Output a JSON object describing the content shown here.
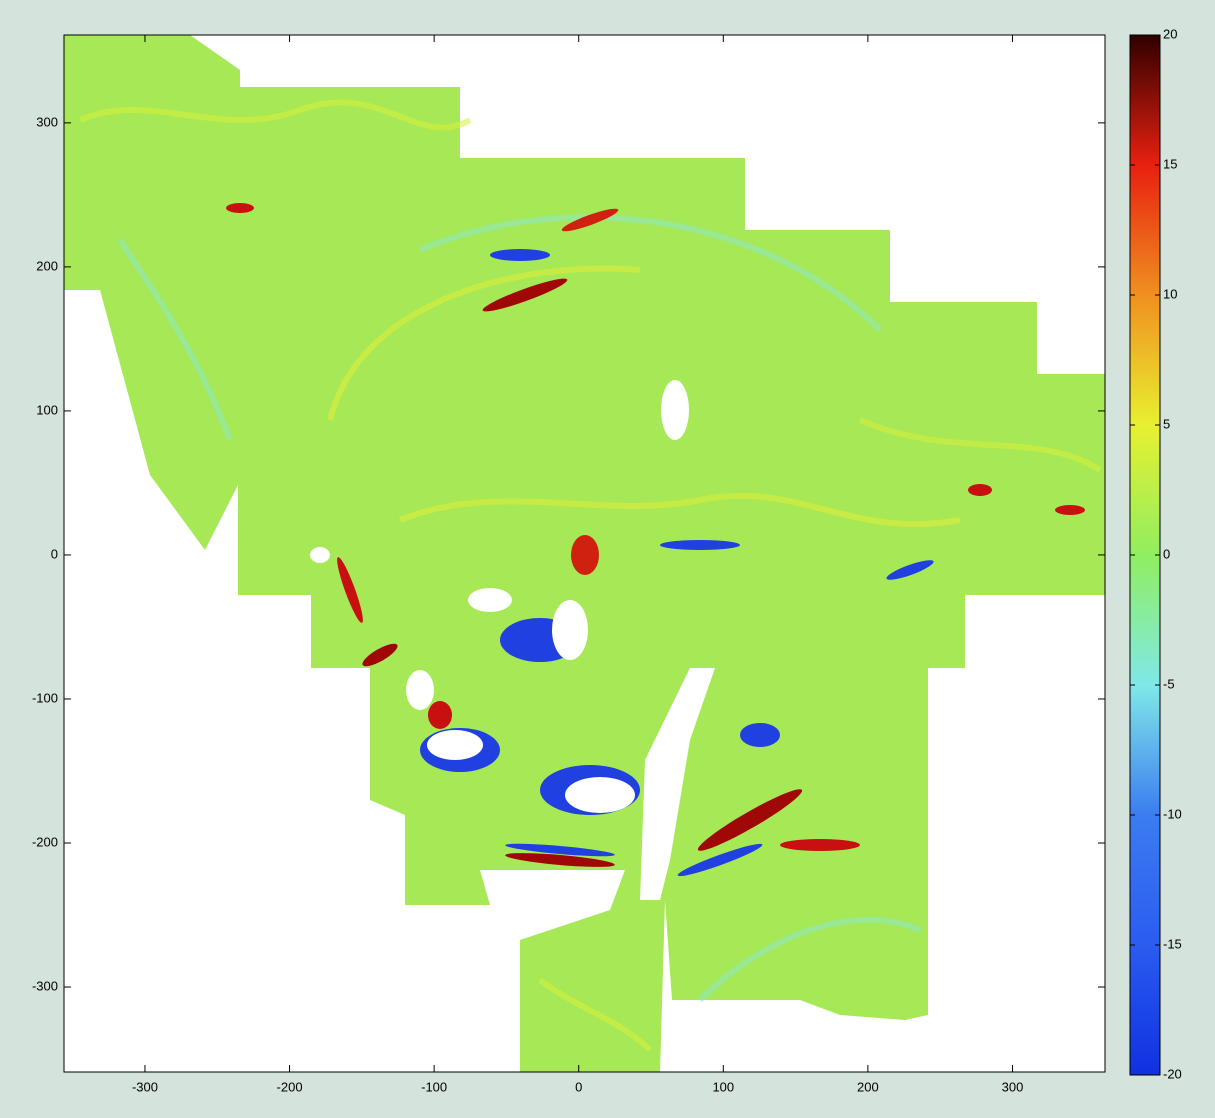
{
  "chart_data": {
    "type": "heatmap",
    "xlim": [
      -356,
      364
    ],
    "ylim": [
      -359,
      361
    ],
    "xticks": [
      -300,
      -200,
      -100,
      0,
      100,
      200,
      300
    ],
    "yticks": [
      -300,
      -200,
      -100,
      0,
      100,
      200,
      300
    ],
    "colorbar": {
      "clim": [
        -20,
        20
      ],
      "ticks": [
        -20,
        -15,
        -10,
        -5,
        0,
        5,
        10,
        15,
        20
      ],
      "colors": [
        "#1030e0",
        "#2a5cf0",
        "#3c7cf0",
        "#80e8e8",
        "#90ee60",
        "#e8f030",
        "#f09020",
        "#e82010",
        "#300000"
      ]
    }
  }
}
